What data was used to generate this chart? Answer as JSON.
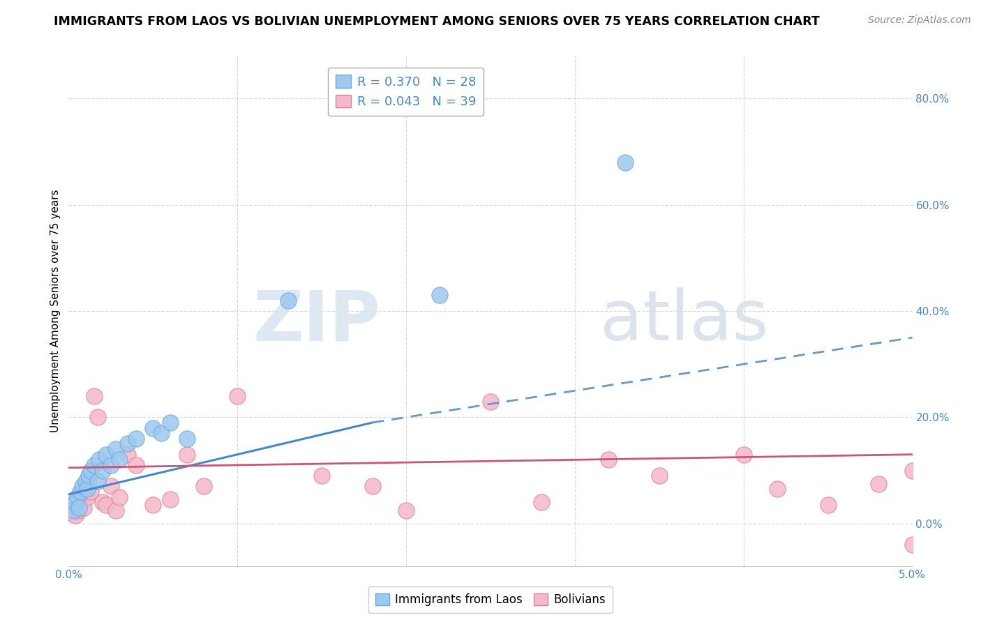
{
  "title": "IMMIGRANTS FROM LAOS VS BOLIVIAN UNEMPLOYMENT AMONG SENIORS OVER 75 YEARS CORRELATION CHART",
  "source": "Source: ZipAtlas.com",
  "ylabel": "Unemployment Among Seniors over 75 years",
  "legend_entries": [
    {
      "label": "Immigrants from Laos",
      "R": 0.37,
      "N": 28,
      "color": "#9ec8f0",
      "edge_color": "#6aaad8"
    },
    {
      "label": "Bolivians",
      "R": 0.043,
      "N": 39,
      "color": "#f5b8c8",
      "edge_color": "#e08098"
    }
  ],
  "right_yticks": [
    0.0,
    20.0,
    40.0,
    60.0,
    80.0
  ],
  "xlim": [
    0.0,
    5.0
  ],
  "ylim": [
    -8.0,
    88.0
  ],
  "watermark_text": "ZIP",
  "watermark_text2": "atlas",
  "blue_scatter": [
    [
      0.02,
      3.5
    ],
    [
      0.03,
      2.5
    ],
    [
      0.04,
      4.0
    ],
    [
      0.05,
      5.0
    ],
    [
      0.06,
      3.0
    ],
    [
      0.07,
      6.0
    ],
    [
      0.08,
      7.0
    ],
    [
      0.1,
      8.0
    ],
    [
      0.11,
      6.5
    ],
    [
      0.12,
      9.0
    ],
    [
      0.13,
      10.0
    ],
    [
      0.15,
      11.0
    ],
    [
      0.17,
      8.0
    ],
    [
      0.18,
      12.0
    ],
    [
      0.2,
      10.0
    ],
    [
      0.22,
      13.0
    ],
    [
      0.25,
      11.0
    ],
    [
      0.28,
      14.0
    ],
    [
      0.3,
      12.0
    ],
    [
      0.35,
      15.0
    ],
    [
      0.4,
      16.0
    ],
    [
      0.5,
      18.0
    ],
    [
      0.55,
      17.0
    ],
    [
      0.6,
      19.0
    ],
    [
      0.7,
      16.0
    ],
    [
      1.3,
      42.0
    ],
    [
      2.2,
      43.0
    ],
    [
      3.3,
      68.0
    ]
  ],
  "pink_scatter": [
    [
      0.02,
      2.0
    ],
    [
      0.03,
      3.5
    ],
    [
      0.04,
      1.5
    ],
    [
      0.05,
      5.0
    ],
    [
      0.06,
      2.5
    ],
    [
      0.07,
      4.0
    ],
    [
      0.08,
      6.0
    ],
    [
      0.09,
      3.0
    ],
    [
      0.1,
      7.5
    ],
    [
      0.11,
      5.0
    ],
    [
      0.12,
      8.0
    ],
    [
      0.13,
      6.0
    ],
    [
      0.15,
      24.0
    ],
    [
      0.17,
      20.0
    ],
    [
      0.2,
      4.0
    ],
    [
      0.22,
      3.5
    ],
    [
      0.25,
      7.0
    ],
    [
      0.28,
      2.5
    ],
    [
      0.3,
      5.0
    ],
    [
      0.35,
      13.0
    ],
    [
      0.4,
      11.0
    ],
    [
      0.5,
      3.5
    ],
    [
      0.6,
      4.5
    ],
    [
      0.7,
      13.0
    ],
    [
      0.8,
      7.0
    ],
    [
      1.0,
      24.0
    ],
    [
      1.5,
      9.0
    ],
    [
      1.8,
      7.0
    ],
    [
      2.0,
      2.5
    ],
    [
      2.5,
      23.0
    ],
    [
      2.8,
      4.0
    ],
    [
      3.2,
      12.0
    ],
    [
      3.5,
      9.0
    ],
    [
      4.0,
      13.0
    ],
    [
      4.2,
      6.5
    ],
    [
      4.5,
      3.5
    ],
    [
      4.8,
      7.5
    ],
    [
      5.0,
      -4.0
    ],
    [
      5.0,
      10.0
    ]
  ],
  "blue_line_solid": {
    "x": [
      0.0,
      1.8
    ],
    "y": [
      5.5,
      19.0
    ]
  },
  "blue_line_dashed": {
    "x": [
      1.8,
      5.0
    ],
    "y": [
      19.0,
      35.0
    ]
  },
  "pink_line": {
    "x": [
      0.0,
      5.0
    ],
    "y": [
      10.5,
      13.0
    ]
  },
  "background_color": "#ffffff",
  "grid_color": "#d0d0d0",
  "title_fontsize": 12.5,
  "source_fontsize": 10,
  "axis_label_fontsize": 11,
  "tick_fontsize": 11,
  "legend_fontsize": 13
}
